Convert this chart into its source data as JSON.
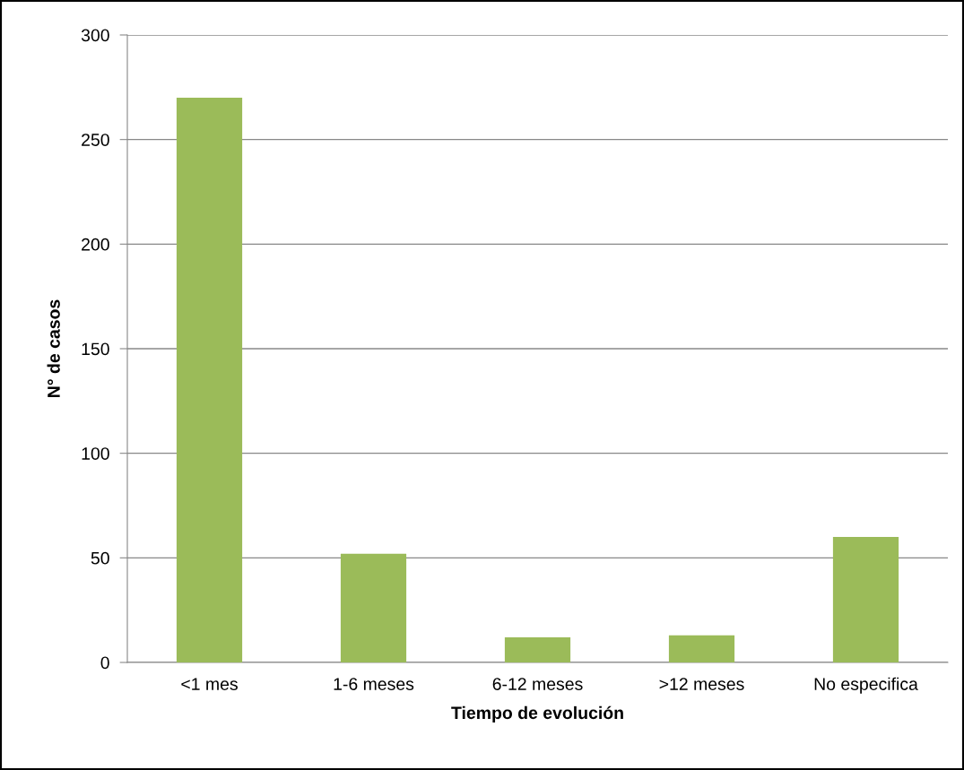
{
  "chart_data": {
    "type": "bar",
    "xlabel": "Tiempo de evolución",
    "ylabel": "N° de casos",
    "categories": [
      "<1 mes",
      "1-6 meses",
      "6-12 meses",
      ">12 meses",
      "No especifica"
    ],
    "values": [
      270,
      52,
      12,
      13,
      60
    ],
    "color": "#9bbb59",
    "ylim": [
      0,
      300
    ],
    "yticks": [
      0,
      50,
      100,
      150,
      200,
      250,
      300
    ],
    "grid": "y",
    "legend": false
  }
}
